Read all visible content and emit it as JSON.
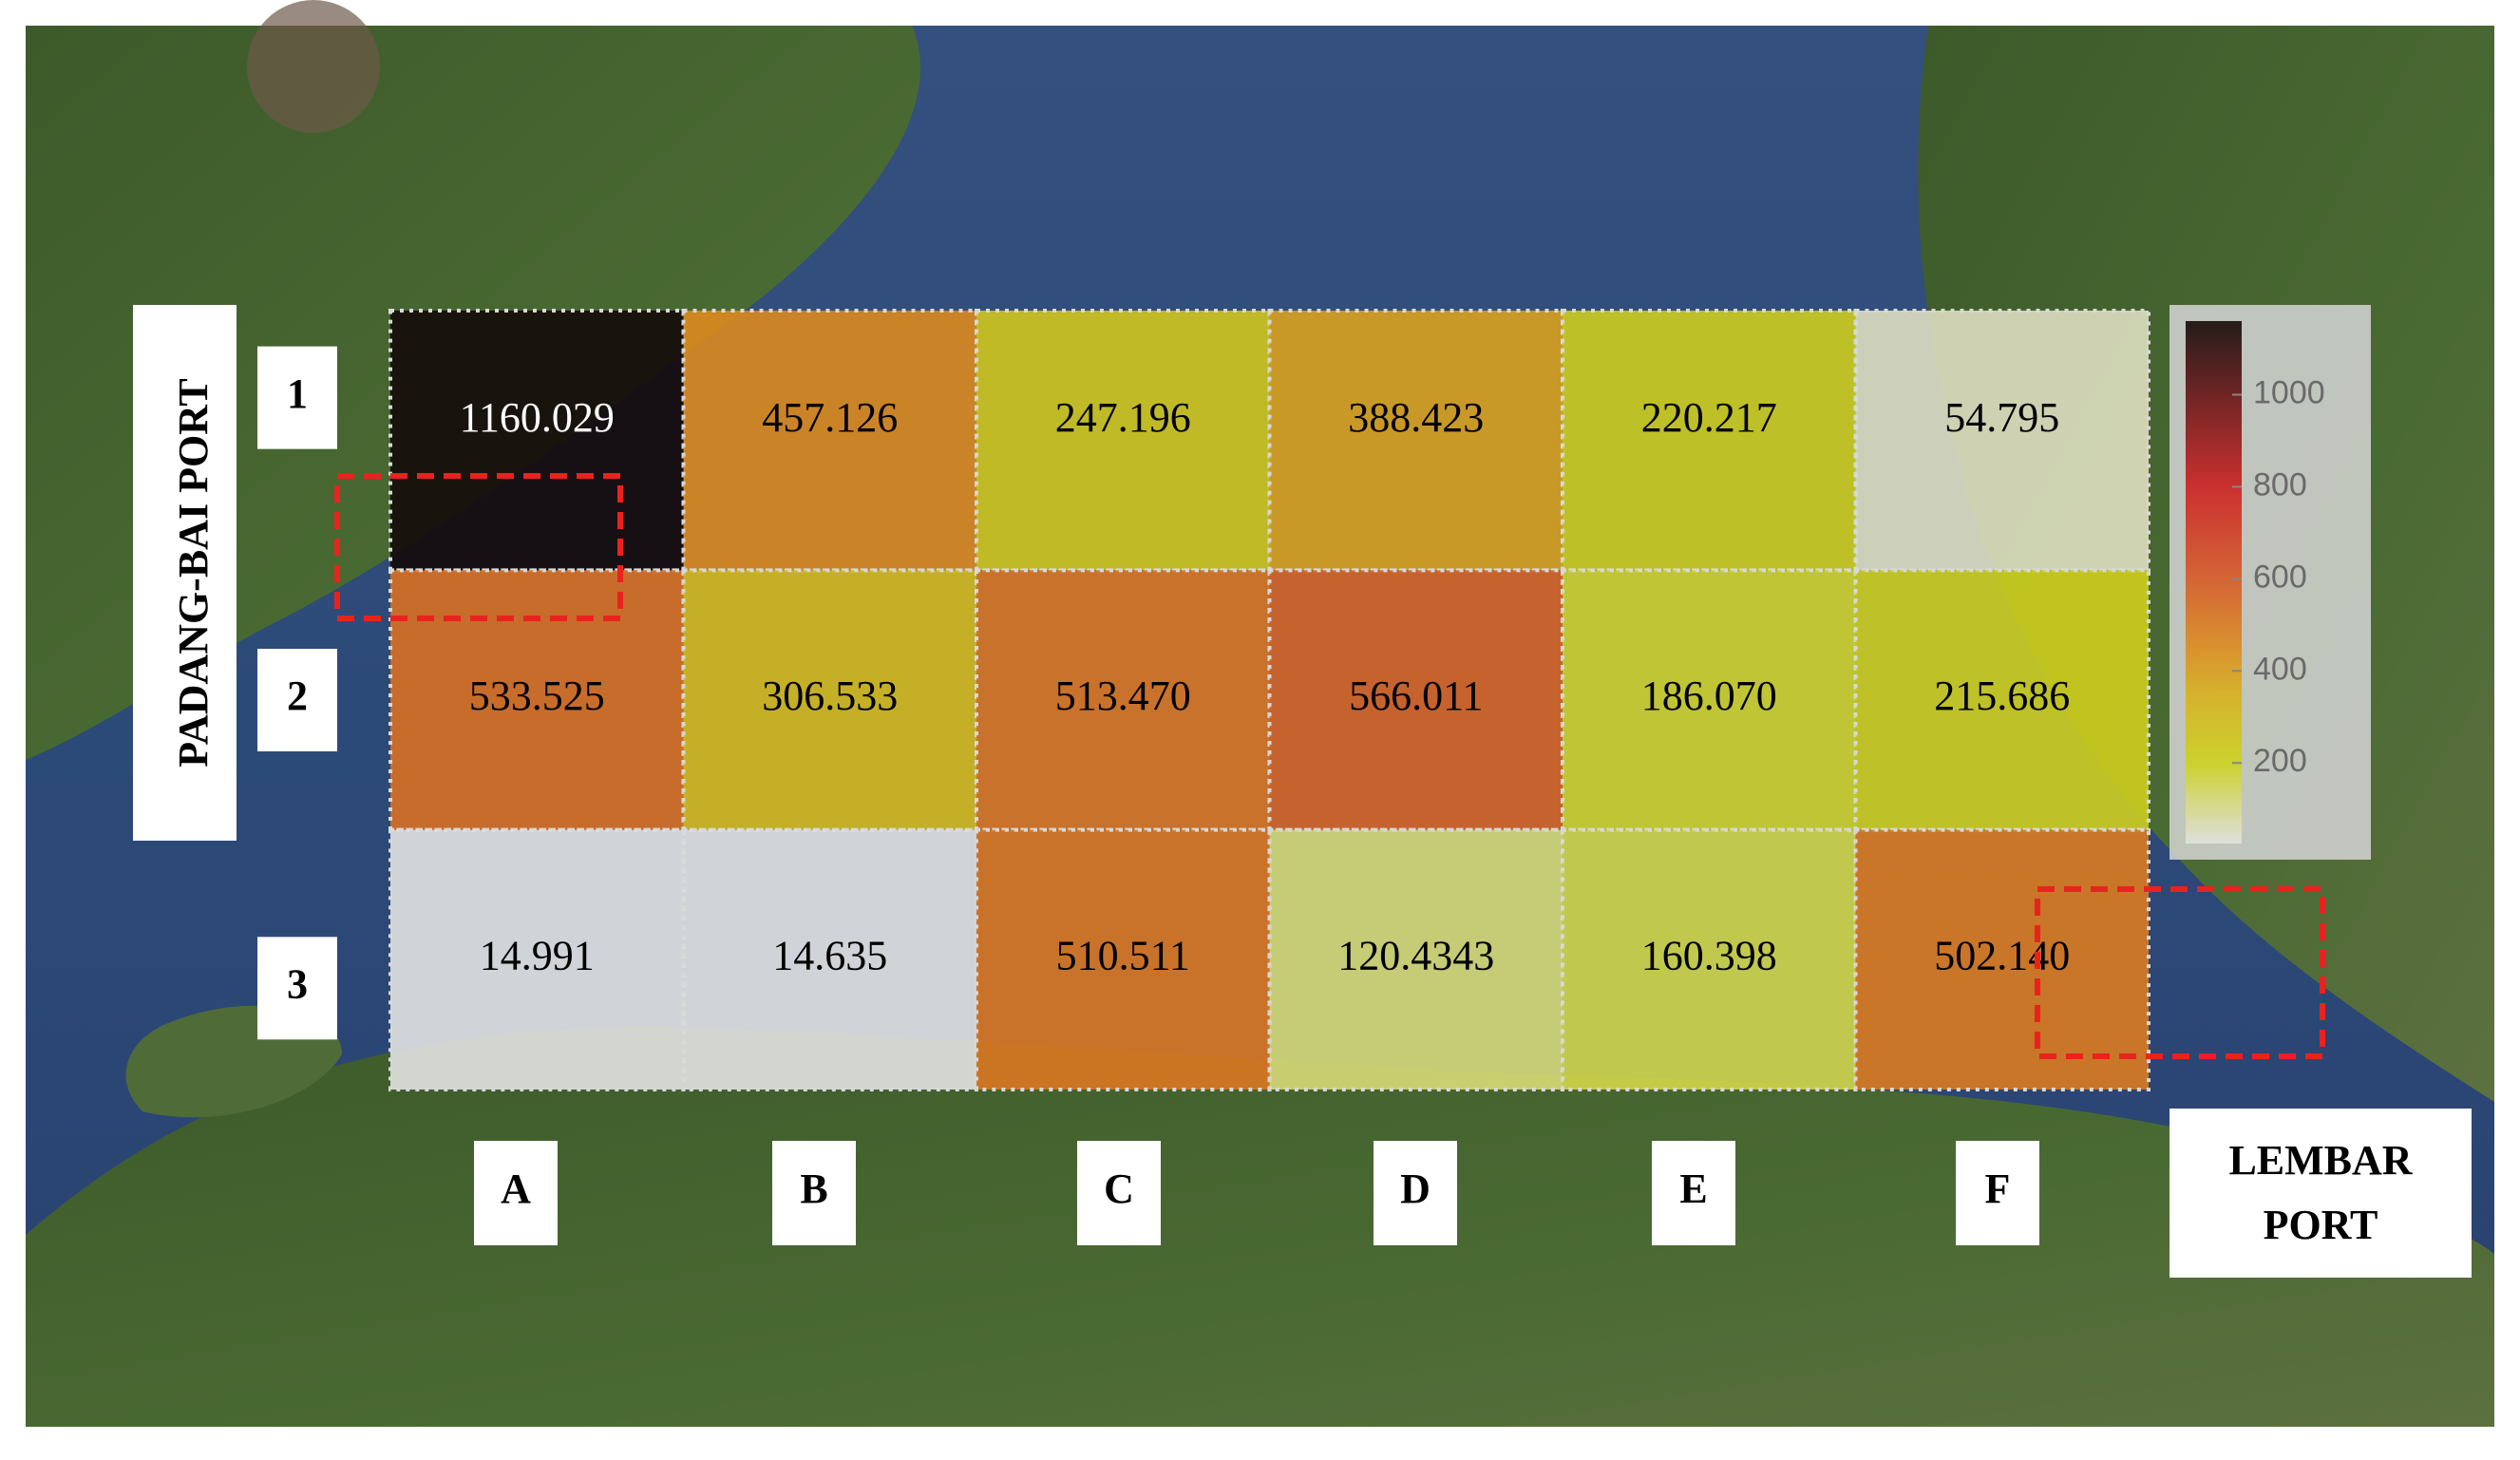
{
  "chart_data": {
    "type": "heatmap",
    "categories": [
      "A",
      "B",
      "C",
      "D",
      "E",
      "F"
    ],
    "rows": [
      "1",
      "2",
      "3"
    ],
    "values": [
      [
        1160.029,
        457.126,
        247.196,
        388.423,
        220.217,
        54.795
      ],
      [
        533.525,
        306.533,
        513.47,
        566.011,
        186.07,
        215.686
      ],
      [
        14.991,
        14.635,
        510.511,
        120.4343,
        160.398,
        502.14
      ]
    ],
    "value_labels": [
      [
        "1160.029",
        "457.126",
        "247.196",
        "388.423",
        "220.217",
        "54.795"
      ],
      [
        "533.525",
        "306.533",
        "513.470",
        "566.011",
        "186.070",
        "215.686"
      ],
      [
        "14.991",
        "14.635",
        "510.511",
        "120.4343",
        "160.398",
        "502.140"
      ]
    ],
    "colorscale": [
      {
        "value": 25,
        "color": "#e2e2e2"
      },
      {
        "value": 200,
        "color": "#cdd21e"
      },
      {
        "value": 350,
        "color": "#d8b01e"
      },
      {
        "value": 450,
        "color": "#dc8c1e"
      },
      {
        "value": 600,
        "color": "#d65a28"
      },
      {
        "value": 800,
        "color": "#cc2020"
      },
      {
        "value": 1160,
        "color": "#140a0a"
      }
    ],
    "clim": [
      25,
      1160
    ],
    "cticks": [
      200,
      400,
      600,
      800,
      1000
    ],
    "annotations": [
      "PADANG-BAI  PORT",
      "LEMBAR PORT"
    ]
  }
}
